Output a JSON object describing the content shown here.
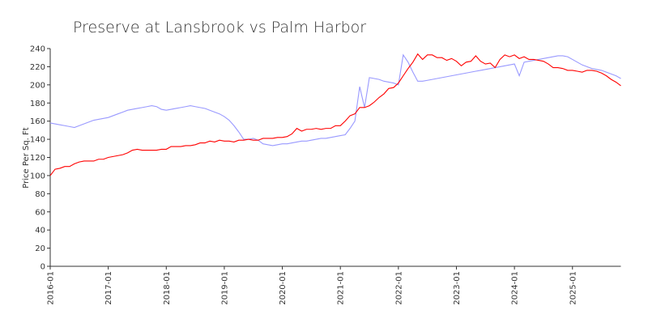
{
  "chart_data": {
    "type": "line",
    "title": "Preserve at Lansbrook  vs Palm Harbor",
    "y_label": "Price Per Sq. Ft",
    "x": [
      "2016-01",
      "2016-02",
      "2016-03",
      "2016-04",
      "2016-05",
      "2016-06",
      "2016-07",
      "2016-08",
      "2016-09",
      "2016-10",
      "2016-11",
      "2016-12",
      "2017-01",
      "2017-02",
      "2017-03",
      "2017-04",
      "2017-05",
      "2017-06",
      "2017-07",
      "2017-08",
      "2017-09",
      "2017-10",
      "2017-11",
      "2017-12",
      "2018-01",
      "2018-02",
      "2018-03",
      "2018-04",
      "2018-05",
      "2018-06",
      "2018-07",
      "2018-08",
      "2018-09",
      "2018-10",
      "2018-11",
      "2018-12",
      "2019-01",
      "2019-02",
      "2019-03",
      "2019-04",
      "2019-05",
      "2019-06",
      "2019-07",
      "2019-08",
      "2019-09",
      "2019-10",
      "2019-11",
      "2019-12",
      "2020-01",
      "2020-02",
      "2020-03",
      "2020-04",
      "2020-05",
      "2020-06",
      "2020-07",
      "2020-08",
      "2020-09",
      "2020-10",
      "2020-11",
      "2020-12",
      "2021-01",
      "2021-02",
      "2021-03",
      "2021-04",
      "2021-05",
      "2021-06",
      "2021-07",
      "2021-08",
      "2021-09",
      "2021-10",
      "2021-11",
      "2021-12",
      "2022-01",
      "2022-02",
      "2022-03",
      "2022-04",
      "2022-05",
      "2022-06",
      "2022-07",
      "2022-08",
      "2022-09",
      "2022-10",
      "2022-11",
      "2022-12",
      "2023-01",
      "2023-02",
      "2023-03",
      "2023-04",
      "2023-05",
      "2023-06",
      "2023-07",
      "2023-08",
      "2023-09",
      "2023-10",
      "2023-11",
      "2023-12",
      "2024-01",
      "2024-02",
      "2024-03",
      "2024-04",
      "2024-05",
      "2024-06",
      "2024-07",
      "2024-08",
      "2024-09",
      "2024-10",
      "2024-11",
      "2024-12",
      "2025-01",
      "2025-02",
      "2025-03",
      "2025-04",
      "2025-05",
      "2025-06",
      "2025-07",
      "2025-08",
      "2025-09",
      "2025-10",
      "2025-11"
    ],
    "xtick_every": 12,
    "series": [
      {
        "color": "#ff0000",
        "values": [
          100,
          107,
          108,
          110,
          110,
          113,
          115,
          116,
          116,
          116,
          118,
          118,
          120,
          121,
          122,
          123,
          125,
          128,
          129,
          128,
          128,
          128,
          128,
          129,
          129,
          132,
          132,
          132,
          133,
          133,
          134,
          136,
          136,
          138,
          137,
          139,
          138,
          138,
          137,
          139,
          139,
          140,
          139,
          139,
          141,
          141,
          141,
          142,
          142,
          143,
          146,
          152,
          149,
          151,
          151,
          152,
          151,
          152,
          152,
          155,
          155,
          160,
          166,
          168,
          175,
          175,
          177,
          181,
          186,
          190,
          196,
          197,
          202,
          210,
          218,
          225,
          234,
          228,
          233,
          233,
          230,
          230,
          227,
          229,
          226,
          221,
          225,
          226,
          232,
          226,
          223,
          224,
          219,
          228,
          233,
          231,
          233,
          229,
          231,
          228,
          228,
          227,
          226,
          223,
          219,
          219,
          218,
          216,
          216,
          215,
          214,
          216,
          216,
          215,
          213,
          210,
          206,
          203,
          199
        ]
      },
      {
        "color": "#9999ff",
        "values": [
          158,
          157,
          156,
          155,
          154,
          153,
          155,
          157,
          159,
          161,
          162,
          163,
          164,
          166,
          168,
          170,
          172,
          173,
          174,
          175,
          176,
          177,
          176,
          173,
          172,
          173,
          174,
          175,
          176,
          177,
          176,
          175,
          174,
          172,
          170,
          168,
          165,
          161,
          155,
          148,
          140,
          140,
          141,
          139,
          135,
          134,
          133,
          134,
          135,
          135,
          136,
          137,
          138,
          138,
          139,
          140,
          141,
          141,
          142,
          143,
          144,
          145,
          152,
          160,
          198,
          175,
          208,
          207,
          206,
          204,
          203,
          202,
          200,
          233,
          225,
          214,
          204,
          204,
          205,
          206,
          207,
          208,
          209,
          210,
          211,
          212,
          213,
          214,
          215,
          216,
          217,
          218,
          219,
          220,
          221,
          222,
          223,
          210,
          225,
          226,
          227,
          228,
          229,
          230,
          231,
          232,
          232,
          231,
          228,
          225,
          222,
          220,
          218,
          217,
          216,
          214,
          212,
          210,
          207
        ]
      }
    ],
    "ylim": [
      0,
      240
    ],
    "yticks": [
      0,
      20,
      40,
      60,
      80,
      100,
      120,
      140,
      160,
      180,
      200,
      220,
      240
    ]
  }
}
